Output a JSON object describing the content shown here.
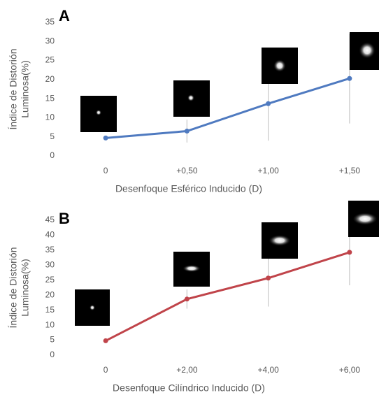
{
  "chart_data": [
    {
      "type": "line",
      "panel_label": "A",
      "title": null,
      "xlabel": "Desenfoque  Esférico Inducido (D)",
      "ylabel_lines": [
        "Índice de Distorión",
        "Luminosa(%)"
      ],
      "categories": [
        "0",
        "+0,50",
        "+1,00",
        "+1,50"
      ],
      "series": [
        {
          "name": null,
          "color": "#4f7ac0",
          "values": [
            4.7,
            6.5,
            13.7,
            20.3
          ],
          "errors": [
            0.3,
            3.0,
            9.7,
            11.8
          ]
        }
      ],
      "ylim": [
        0,
        35
      ],
      "yticks": [
        0,
        5,
        10,
        15,
        20,
        25,
        30,
        35
      ]
    },
    {
      "type": "line",
      "panel_label": "B",
      "title": null,
      "xlabel": "Desenfoque  Cilíndrico Inducido (D)",
      "ylabel_lines": [
        "Índice de Distorión",
        "Luminosa(%)"
      ],
      "categories": [
        "0",
        "+2,00",
        "+4,00",
        "+6,00"
      ],
      "series": [
        {
          "name": null,
          "color": "#c0444a",
          "values": [
            4.8,
            18.7,
            25.7,
            34.3
          ],
          "errors": [
            0.3,
            3.2,
            9.5,
            11.0
          ]
        }
      ],
      "ylim": [
        0,
        45
      ],
      "yticks": [
        0,
        5,
        10,
        15,
        20,
        25,
        30,
        35,
        40,
        45
      ]
    }
  ]
}
